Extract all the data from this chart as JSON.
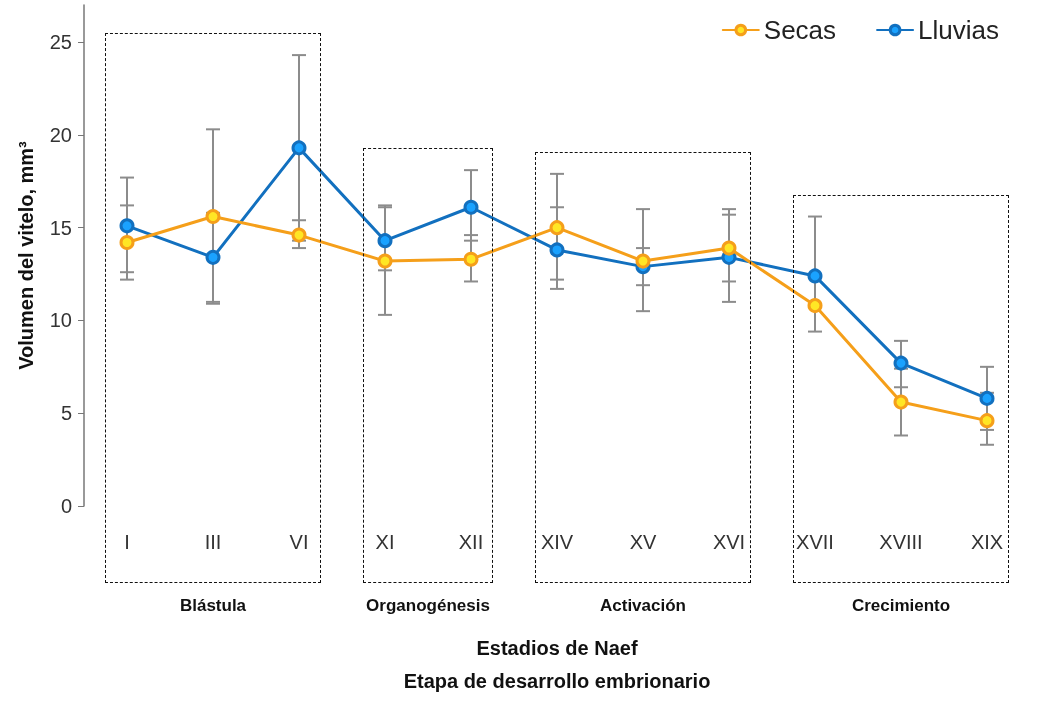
{
  "chart_data": {
    "type": "line",
    "xlabel": "Estadios de Naef\nEtapa de desarrollo embrionario",
    "ylabel": "Volumen del vitelo, mm³",
    "categories": [
      "I",
      "III",
      "VI",
      "XI",
      "XII",
      "XIV",
      "XV",
      "XVI",
      "XVII",
      "XVIII",
      "XIX"
    ],
    "series": [
      {
        "name": "Secas",
        "color": "#f59f1a",
        "values": [
          14.2,
          15.6,
          14.6,
          13.2,
          13.3,
          15.0,
          13.2,
          13.9,
          10.8,
          5.6,
          4.6
        ],
        "errors": [
          [
            12.2,
            16.2
          ],
          [
            10.9,
            20.3
          ],
          [
            13.9,
            15.4
          ],
          [
            10.3,
            16.1
          ],
          [
            12.1,
            14.6
          ],
          [
            12.2,
            17.9
          ],
          [
            10.5,
            16.0
          ],
          [
            12.1,
            15.7
          ],
          null,
          [
            3.8,
            7.4
          ],
          [
            3.3,
            6.1
          ]
        ]
      },
      {
        "name": "Lluvias",
        "color": "#1270bf",
        "values": [
          15.1,
          13.4,
          19.3,
          14.3,
          16.1,
          13.8,
          12.9,
          13.4,
          12.4,
          7.7,
          5.8
        ],
        "errors": [
          [
            12.6,
            17.7
          ],
          [
            11.0,
            15.8
          ],
          [
            14.3,
            24.3
          ],
          [
            12.7,
            16.2
          ],
          [
            14.3,
            18.1
          ],
          [
            11.7,
            16.1
          ],
          [
            11.9,
            13.9
          ],
          [
            11.0,
            16.0
          ],
          [
            9.4,
            15.6
          ],
          [
            6.4,
            8.9
          ],
          [
            4.1,
            7.5
          ]
        ]
      }
    ],
    "annotations": [
      "Blástula",
      "Organogénesis",
      "Activación",
      "Crecimiento"
    ],
    "ylim": [
      0,
      27
    ],
    "yticks": [
      0,
      5,
      10,
      15,
      20,
      25
    ],
    "grid": false,
    "legend": "top right",
    "marker": "circle",
    "line_style": "solid"
  }
}
